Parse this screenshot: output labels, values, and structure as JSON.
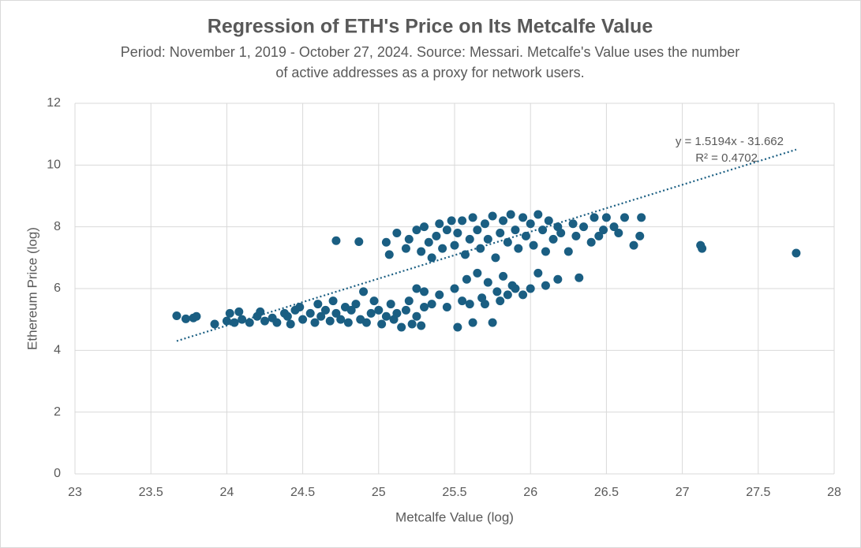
{
  "chart_data": {
    "type": "scatter",
    "title": "Regression of ETH's Price on Its Metcalfe Value",
    "subtitle": [
      "Period: November 1, 2019 - October 27, 2024. Source: Messari. Metcalfe's Value uses the number",
      "of active addresses as a proxy for network users."
    ],
    "x_label": "Metcalfe Value (log)",
    "y_label": "Ethereum Price (log)",
    "color": "#1a5e82",
    "grid": true,
    "xlim": [
      23,
      28
    ],
    "xticks": [
      23,
      23.5,
      24,
      24.5,
      25,
      25.5,
      26,
      26.5,
      27,
      27.5,
      28
    ],
    "ylim": [
      0,
      12
    ],
    "yticks": [
      0,
      2,
      4,
      6,
      8,
      10,
      12
    ],
    "x": [
      23.67,
      23.73,
      23.78,
      23.8,
      23.92,
      24.0,
      24.02,
      24.05,
      24.08,
      24.1,
      24.15,
      24.2,
      24.22,
      24.25,
      24.3,
      24.33,
      24.38,
      24.4,
      24.42,
      24.45,
      24.48,
      24.5,
      24.55,
      24.58,
      24.6,
      24.62,
      24.65,
      24.68,
      24.7,
      24.72,
      24.75,
      24.78,
      24.8,
      24.82,
      24.85,
      24.88,
      24.9,
      24.92,
      24.95,
      24.97,
      25.0,
      25.02,
      25.05,
      25.08,
      25.1,
      25.12,
      25.15,
      25.18,
      25.2,
      25.22,
      25.25,
      25.28,
      25.3,
      25.35,
      25.4,
      25.45,
      25.5,
      25.52,
      25.55,
      25.58,
      25.6,
      25.62,
      25.65,
      25.68,
      25.7,
      25.72,
      25.75,
      25.78,
      25.8,
      25.82,
      25.85,
      25.88,
      25.9,
      25.95,
      26.0,
      26.05,
      26.1,
      26.18,
      26.32,
      25.25,
      25.3,
      24.72,
      24.87,
      25.05,
      25.07,
      25.12,
      25.18,
      25.2,
      25.25,
      25.28,
      25.3,
      25.33,
      25.35,
      25.38,
      25.4,
      25.42,
      25.45,
      25.48,
      25.5,
      25.52,
      25.55,
      25.57,
      25.6,
      25.62,
      25.65,
      25.67,
      25.7,
      25.72,
      25.75,
      25.77,
      25.8,
      25.82,
      25.85,
      25.87,
      25.9,
      25.92,
      25.95,
      25.97,
      26.0,
      26.02,
      26.05,
      26.08,
      26.1,
      26.12,
      26.15,
      26.18,
      26.2,
      26.25,
      26.28,
      26.3,
      26.35,
      26.4,
      26.42,
      26.45,
      26.48,
      26.5,
      26.55,
      26.58,
      26.62,
      26.68,
      26.72,
      26.73,
      27.12,
      27.13,
      27.75
    ],
    "values": [
      5.12,
      5.02,
      5.05,
      5.1,
      4.85,
      4.95,
      5.2,
      4.9,
      5.25,
      5.0,
      4.9,
      5.1,
      5.25,
      4.95,
      5.05,
      4.9,
      5.2,
      5.1,
      4.85,
      5.3,
      5.4,
      5.0,
      5.2,
      4.9,
      5.5,
      5.1,
      5.3,
      4.95,
      5.6,
      5.2,
      5.0,
      5.4,
      4.9,
      5.3,
      5.5,
      5.0,
      5.9,
      4.9,
      5.2,
      5.6,
      5.3,
      4.85,
      5.1,
      5.5,
      5.0,
      5.2,
      4.75,
      5.3,
      5.6,
      4.85,
      5.1,
      4.8,
      5.4,
      5.5,
      5.8,
      5.4,
      6.0,
      4.75,
      5.6,
      6.3,
      5.5,
      4.9,
      6.5,
      5.7,
      5.5,
      6.2,
      4.9,
      5.9,
      5.6,
      6.4,
      5.8,
      6.1,
      6.0,
      5.8,
      6.0,
      6.5,
      6.1,
      6.3,
      6.35,
      6.0,
      5.9,
      7.55,
      7.52,
      7.5,
      7.1,
      7.8,
      7.3,
      7.6,
      7.9,
      7.2,
      8.0,
      7.5,
      7.0,
      7.7,
      8.1,
      7.3,
      7.9,
      8.2,
      7.4,
      7.8,
      8.2,
      7.1,
      7.6,
      8.3,
      7.9,
      7.3,
      8.1,
      7.6,
      8.35,
      7.0,
      7.8,
      8.2,
      7.5,
      8.4,
      7.9,
      7.3,
      8.3,
      7.7,
      8.1,
      7.4,
      8.4,
      7.9,
      7.2,
      8.2,
      7.6,
      8.0,
      7.8,
      7.2,
      8.1,
      7.7,
      8.0,
      7.5,
      8.3,
      7.7,
      7.9,
      8.3,
      8.0,
      7.8,
      8.3,
      7.4,
      7.7,
      8.3,
      7.4,
      7.3,
      7.15
    ],
    "trendline": {
      "equation": "y = 1.5194x - 31.662",
      "r_squared": "R² = 0.4702",
      "slope": 1.5194,
      "intercept": -31.662,
      "x_range": [
        23.67,
        27.75
      ],
      "color": "#1a5e82"
    }
  }
}
